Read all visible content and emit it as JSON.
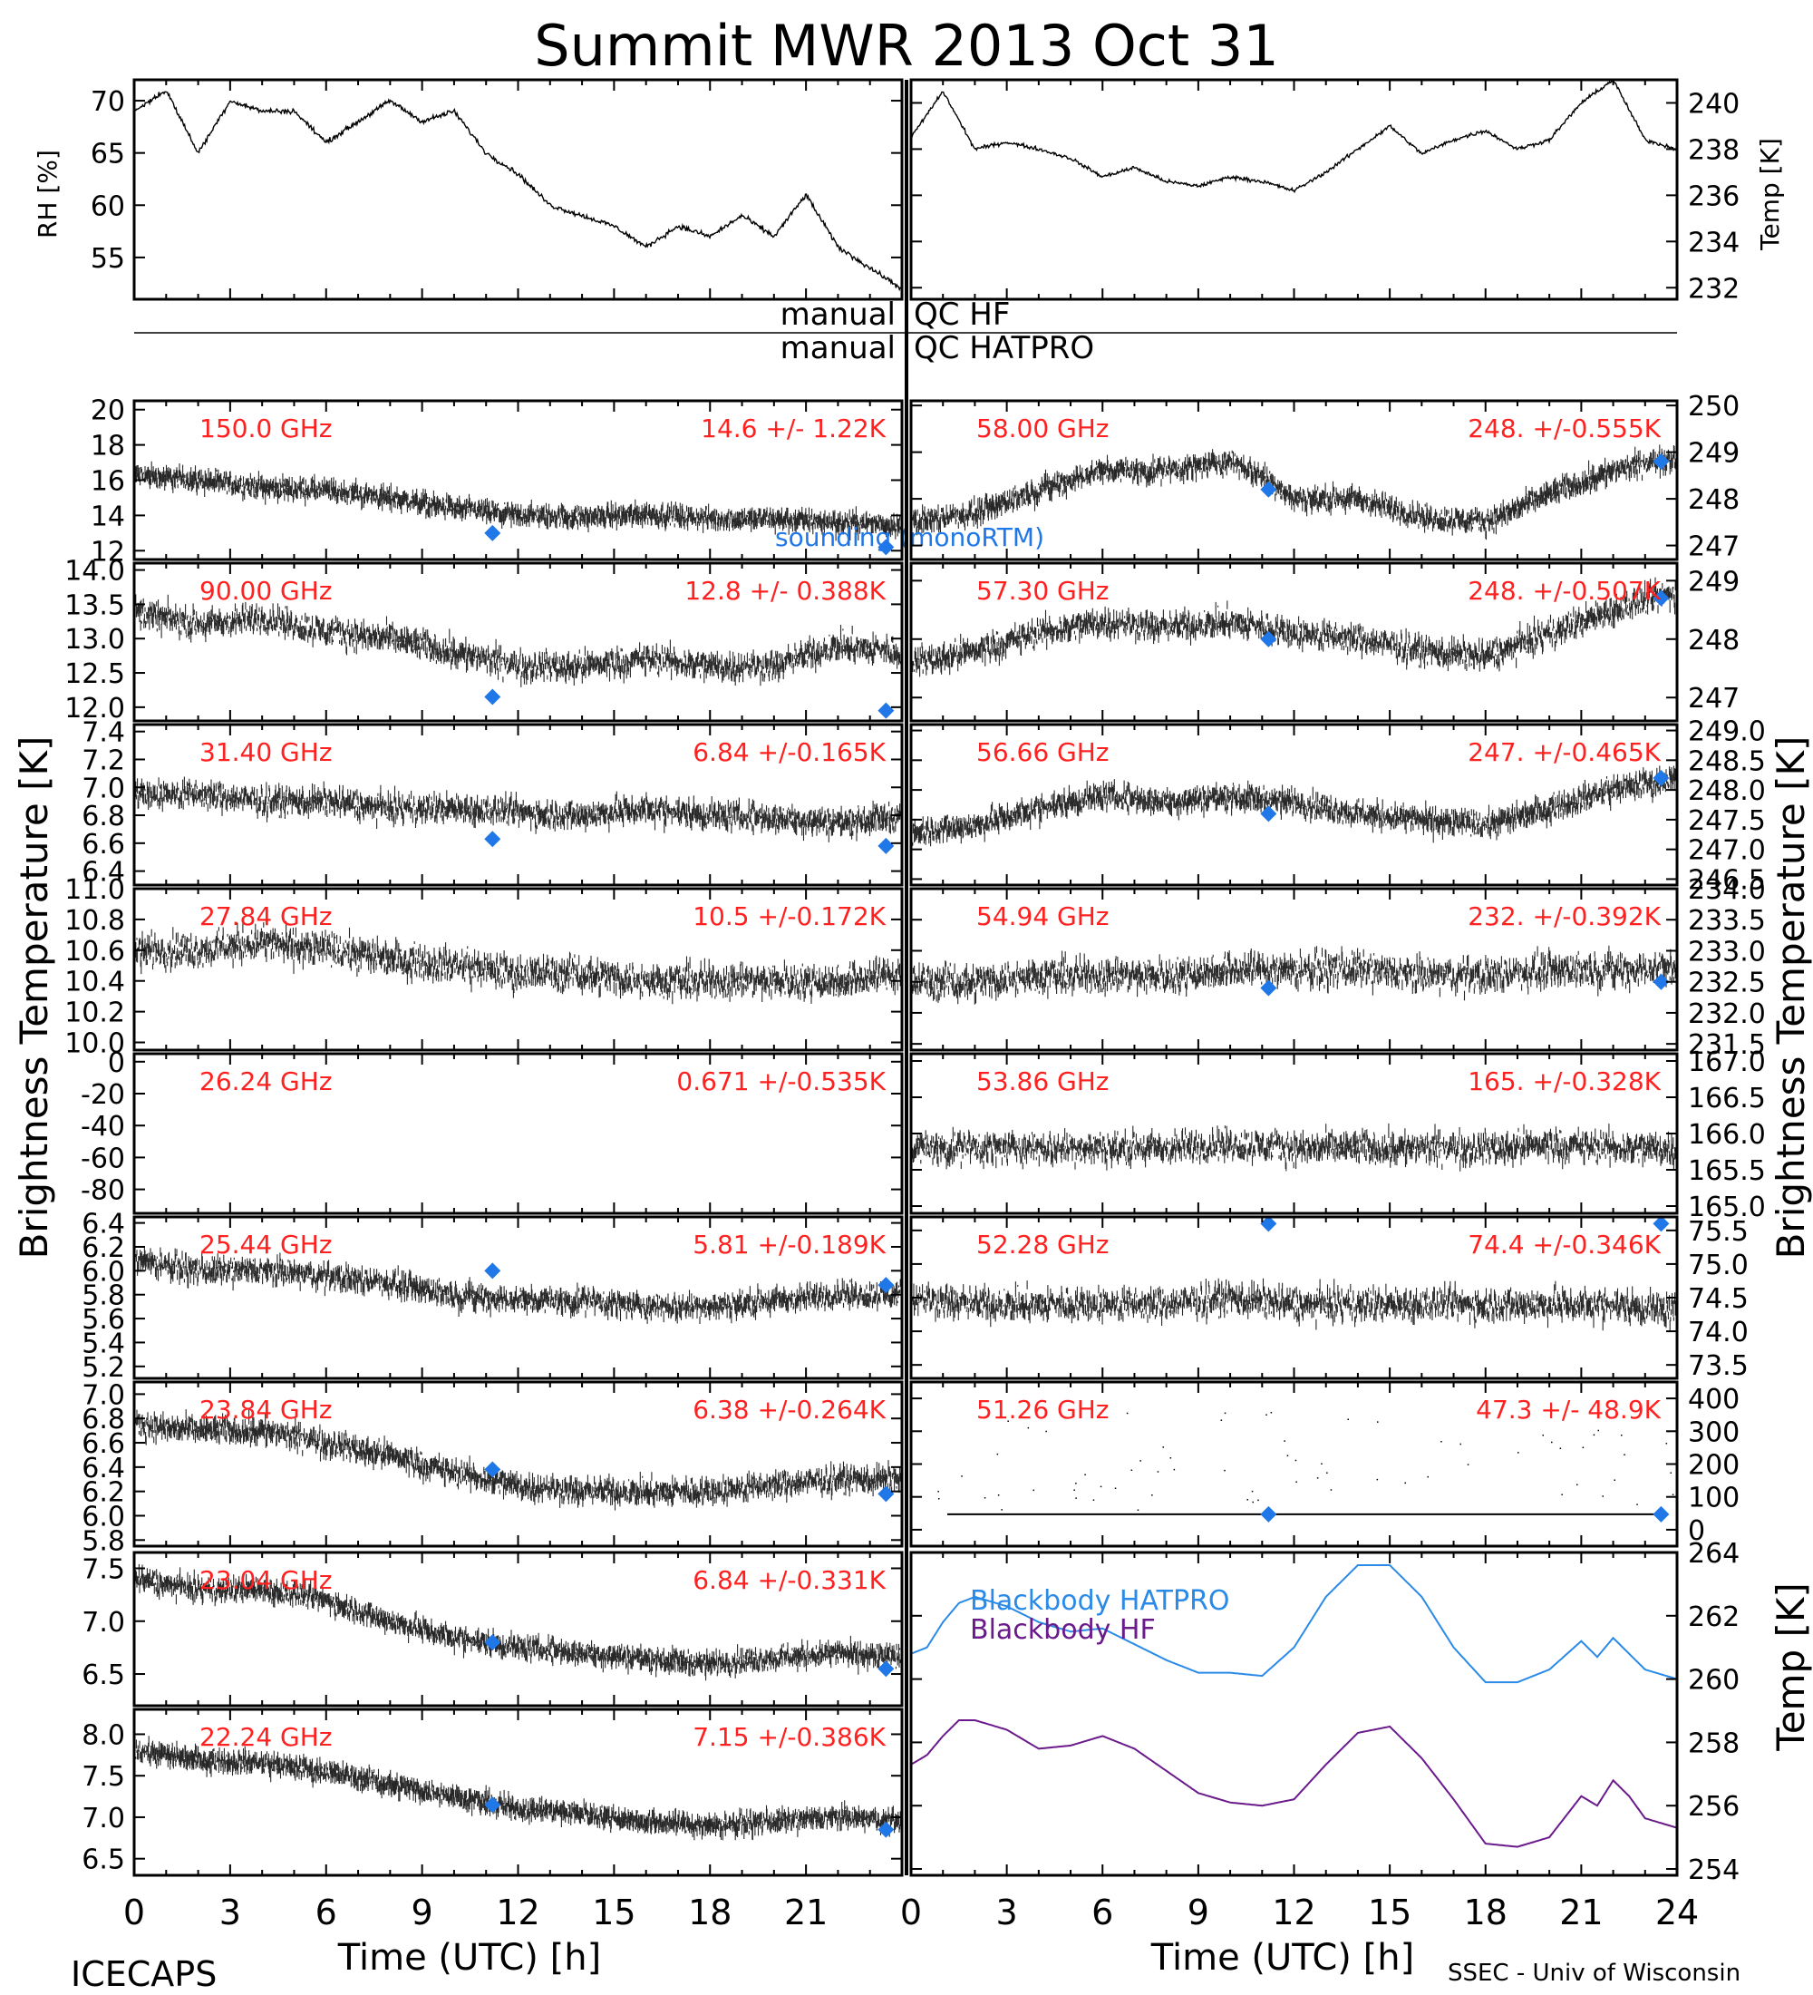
{
  "title": "Summit MWR 2013 Oct 31",
  "footer": {
    "left": "ICECAPS",
    "right": "SSEC - Univ of Wisconsin",
    "xlabel": "Time (UTC) [h]"
  },
  "axis_labels": {
    "left": "Brightness Temperature [K]",
    "right": "Brightness Temperature [K]",
    "rh": "RH [%]",
    "temp": "Temp [K]",
    "bb_temp": "Temp [K]"
  },
  "qc": {
    "manual_1": "manual",
    "qc_hf": "QC HF",
    "manual_2": "manual",
    "qc_hatpro": "QC HATPRO"
  },
  "colors": {
    "channel_label": "#ff2020",
    "sounding": "#1f77e8",
    "bb_hatpro": "#2a8ae8",
    "bb_hf": "#6a1a8a",
    "trace": "#000000"
  },
  "sounding_label": "sounding (monoRTM)",
  "chart_data": [
    {
      "id": "met-rh",
      "type": "line",
      "ylabel": "RH [%]",
      "xlim": [
        0,
        24
      ],
      "ylim": [
        51,
        72
      ],
      "yticks": [
        "55",
        "60",
        "65",
        "70"
      ],
      "x": [
        0,
        1,
        2,
        3,
        4,
        5,
        6,
        7,
        8,
        9,
        10,
        11,
        12,
        13,
        14,
        15,
        16,
        17,
        18,
        19,
        20,
        21,
        22,
        23,
        24
      ],
      "values": [
        69,
        71,
        65,
        70,
        69,
        69,
        66,
        68,
        70,
        68,
        69,
        65,
        63,
        60,
        59,
        58,
        56,
        58,
        57,
        59,
        57,
        61,
        56,
        54,
        52
      ]
    },
    {
      "id": "met-temp",
      "type": "line",
      "ylabel": "Temp [K]",
      "xlim": [
        0,
        24
      ],
      "ylim": [
        231.5,
        241
      ],
      "yticks": [
        "232",
        "234",
        "236",
        "238",
        "240"
      ],
      "x": [
        0,
        1,
        2,
        3,
        4,
        5,
        6,
        7,
        8,
        9,
        10,
        11,
        12,
        13,
        14,
        15,
        16,
        17,
        18,
        19,
        20,
        21,
        22,
        23,
        24
      ],
      "values": [
        238.5,
        240.5,
        238,
        238.3,
        238,
        237.6,
        236.8,
        237.2,
        236.6,
        236.4,
        236.8,
        236.6,
        236.2,
        237,
        238,
        239,
        237.8,
        238.4,
        238.8,
        238,
        238.4,
        240,
        241,
        238.4,
        238
      ]
    },
    {
      "id": "ch-150",
      "type": "scatter",
      "channel": "150.0 GHz",
      "stats": "14.6 +/- 1.22K",
      "side": "left",
      "xlim": [
        0,
        24
      ],
      "ylim": [
        11.5,
        20.5
      ],
      "yticks": [
        "12",
        "14",
        "16",
        "18",
        "20"
      ],
      "x": [
        0,
        2,
        4,
        6,
        8,
        10,
        12,
        14,
        16,
        18,
        20,
        22,
        24
      ],
      "values": [
        16.3,
        16,
        15.6,
        15.4,
        15,
        14.4,
        14,
        13.9,
        14.1,
        13.8,
        13.8,
        13.6,
        13.5
      ],
      "spread": 0.8,
      "sounding": [
        {
          "x": 11.2,
          "y": 13
        },
        {
          "x": 23.5,
          "y": 12.2
        }
      ]
    },
    {
      "id": "ch-58",
      "type": "scatter",
      "channel": "58.00 GHz",
      "stats": "248. +/-0.555K",
      "side": "right",
      "xlim": [
        0,
        24
      ],
      "ylim": [
        246.7,
        250.1
      ],
      "yticks": [
        "247",
        "248",
        "249",
        "250"
      ],
      "x": [
        0,
        2,
        4,
        6,
        8,
        10,
        11,
        12,
        14,
        16,
        18,
        20,
        22,
        24
      ],
      "values": [
        247.5,
        247.7,
        248.2,
        248.6,
        248.6,
        248.8,
        248.5,
        248,
        248,
        247.6,
        247.5,
        248.1,
        248.6,
        248.9
      ],
      "spread": 0.35,
      "sounding": [
        {
          "x": 11.2,
          "y": 248.2
        },
        {
          "x": 23.5,
          "y": 248.8
        }
      ]
    },
    {
      "id": "ch-90",
      "type": "scatter",
      "channel": "90.00 GHz",
      "stats": "12.8 +/- 0.388K",
      "side": "left",
      "xlim": [
        0,
        24
      ],
      "ylim": [
        11.8,
        14.1
      ],
      "yticks": [
        "12.0",
        "12.5",
        "13.0",
        "13.5",
        "14.0"
      ],
      "x": [
        0,
        2,
        4,
        6,
        8,
        10,
        12,
        14,
        16,
        18,
        20,
        22,
        24
      ],
      "values": [
        13.4,
        13.2,
        13.3,
        13.1,
        13,
        12.8,
        12.6,
        12.6,
        12.7,
        12.6,
        12.6,
        12.9,
        12.8
      ],
      "spread": 0.3,
      "sounding": [
        {
          "x": 11.2,
          "y": 12.15
        },
        {
          "x": 23.5,
          "y": 11.95
        }
      ]
    },
    {
      "id": "ch-57.30",
      "type": "scatter",
      "channel": "57.30 GHz",
      "stats": "248. +/-0.507K",
      "side": "right",
      "xlim": [
        0,
        24
      ],
      "ylim": [
        246.6,
        249.3
      ],
      "yticks": [
        "247",
        "248",
        "249"
      ],
      "x": [
        0,
        2,
        4,
        6,
        8,
        10,
        12,
        14,
        16,
        18,
        20,
        22,
        24
      ],
      "values": [
        247.6,
        247.8,
        248.1,
        248.3,
        248.2,
        248.3,
        248.1,
        248,
        247.8,
        247.7,
        248.1,
        248.5,
        248.8
      ],
      "spread": 0.35,
      "sounding": [
        {
          "x": 11.2,
          "y": 248
        },
        {
          "x": 23.5,
          "y": 248.7
        }
      ]
    },
    {
      "id": "ch-31.40",
      "type": "scatter",
      "channel": "31.40 GHz",
      "stats": "6.84 +/-0.165K",
      "side": "left",
      "xlim": [
        0,
        24
      ],
      "ylim": [
        6.3,
        7.45
      ],
      "yticks": [
        "6.4",
        "6.6",
        "6.8",
        "7.0",
        "7.2",
        "7.4"
      ],
      "x": [
        0,
        2,
        4,
        6,
        8,
        10,
        12,
        14,
        16,
        18,
        20,
        22,
        24
      ],
      "values": [
        6.95,
        6.95,
        6.9,
        6.9,
        6.85,
        6.85,
        6.82,
        6.8,
        6.85,
        6.8,
        6.78,
        6.75,
        6.8
      ],
      "spread": 0.14,
      "sounding": [
        {
          "x": 11.2,
          "y": 6.63
        },
        {
          "x": 23.5,
          "y": 6.58
        }
      ]
    },
    {
      "id": "ch-56.66",
      "type": "scatter",
      "channel": "56.66 GHz",
      "stats": "247. +/-0.465K",
      "side": "right",
      "xlim": [
        0,
        24
      ],
      "ylim": [
        246.4,
        249.1
      ],
      "yticks": [
        "246.5",
        "247.0",
        "247.5",
        "248.0",
        "248.5",
        "249.0"
      ],
      "x": [
        0,
        2,
        4,
        6,
        8,
        10,
        12,
        14,
        16,
        18,
        20,
        22,
        24
      ],
      "values": [
        247.3,
        247.4,
        247.7,
        247.9,
        247.8,
        247.9,
        247.8,
        247.6,
        247.5,
        247.4,
        247.7,
        248,
        248.2
      ],
      "spread": 0.3,
      "sounding": [
        {
          "x": 11.2,
          "y": 247.6
        },
        {
          "x": 23.5,
          "y": 248.2
        }
      ]
    },
    {
      "id": "ch-27.84",
      "type": "scatter",
      "channel": "27.84 GHz",
      "stats": "10.5 +/-0.172K",
      "side": "left",
      "xlim": [
        0,
        24
      ],
      "ylim": [
        9.95,
        11.0
      ],
      "yticks": [
        "10.0",
        "10.2",
        "10.4",
        "10.6",
        "10.8",
        "11.0"
      ],
      "x": [
        0,
        2,
        4,
        6,
        8,
        10,
        12,
        14,
        16,
        18,
        20,
        22,
        24
      ],
      "values": [
        10.6,
        10.6,
        10.65,
        10.6,
        10.55,
        10.5,
        10.45,
        10.45,
        10.4,
        10.4,
        10.4,
        10.4,
        10.45
      ],
      "spread": 0.16,
      "sounding": []
    },
    {
      "id": "ch-54.94",
      "type": "scatter",
      "channel": "54.94 GHz",
      "stats": "232. +/-0.392K",
      "side": "right",
      "xlim": [
        0,
        24
      ],
      "ylim": [
        231.4,
        234.0
      ],
      "yticks": [
        "231.5",
        "232.0",
        "232.5",
        "233.0",
        "233.5",
        "234.0"
      ],
      "x": [
        0,
        2,
        4,
        6,
        8,
        10,
        12,
        14,
        16,
        18,
        20,
        22,
        24
      ],
      "values": [
        232.5,
        232.5,
        232.6,
        232.6,
        232.6,
        232.7,
        232.7,
        232.7,
        232.6,
        232.6,
        232.7,
        232.7,
        232.7
      ],
      "spread": 0.4,
      "sounding": [
        {
          "x": 11.2,
          "y": 232.4
        },
        {
          "x": 23.5,
          "y": 232.5
        }
      ]
    },
    {
      "id": "ch-26.24",
      "type": "scatter",
      "channel": "26.24 GHz",
      "stats": "0.671 +/-0.535K",
      "side": "left",
      "xlim": [
        0,
        24
      ],
      "ylim": [
        -95,
        5
      ],
      "yticks": [
        "-80",
        "-60",
        "-40",
        "-20",
        "0"
      ],
      "x": [],
      "values": [],
      "spread": 0,
      "sounding": []
    },
    {
      "id": "ch-53.86",
      "type": "scatter",
      "channel": "53.86 GHz",
      "stats": "165. +/-0.328K",
      "side": "right",
      "xlim": [
        0,
        24
      ],
      "ylim": [
        164.9,
        167.1
      ],
      "yticks": [
        "165.0",
        "165.5",
        "166.0",
        "166.5",
        "167.0"
      ],
      "x": [
        0,
        2,
        4,
        6,
        8,
        10,
        12,
        14,
        16,
        18,
        20,
        22,
        24
      ],
      "values": [
        165.8,
        165.8,
        165.8,
        165.8,
        165.8,
        165.85,
        165.8,
        165.8,
        165.8,
        165.8,
        165.85,
        165.8,
        165.8
      ],
      "spread": 0.32,
      "sounding": []
    },
    {
      "id": "ch-25.44",
      "type": "scatter",
      "channel": "25.44 GHz",
      "stats": "5.81 +/-0.189K",
      "side": "left",
      "xlim": [
        0,
        24
      ],
      "ylim": [
        5.1,
        6.45
      ],
      "yticks": [
        "5.2",
        "5.4",
        "5.6",
        "5.8",
        "6.0",
        "6.2",
        "6.4"
      ],
      "x": [
        0,
        2,
        4,
        6,
        8,
        10,
        12,
        14,
        16,
        18,
        20,
        22,
        24
      ],
      "values": [
        6.1,
        6.0,
        6.0,
        5.95,
        5.9,
        5.8,
        5.75,
        5.75,
        5.7,
        5.7,
        5.75,
        5.8,
        5.8
      ],
      "spread": 0.15,
      "sounding": [
        {
          "x": 11.2,
          "y": 6.0
        },
        {
          "x": 23.5,
          "y": 5.88
        }
      ]
    },
    {
      "id": "ch-52.28",
      "type": "scatter",
      "channel": "52.28 GHz",
      "stats": "74.4 +/-0.346K",
      "side": "right",
      "xlim": [
        0,
        24
      ],
      "ylim": [
        73.3,
        75.7
      ],
      "yticks": [
        "73.5",
        "74.0",
        "74.5",
        "75.0",
        "75.5"
      ],
      "x": [
        0,
        2,
        4,
        6,
        8,
        10,
        12,
        14,
        16,
        18,
        20,
        22,
        24
      ],
      "values": [
        74.5,
        74.4,
        74.4,
        74.4,
        74.4,
        74.5,
        74.4,
        74.4,
        74.4,
        74.4,
        74.4,
        74.4,
        74.3
      ],
      "spread": 0.35,
      "sounding": [
        {
          "x": 11.2,
          "y": 75.6
        },
        {
          "x": 23.5,
          "y": 75.6
        }
      ]
    },
    {
      "id": "ch-23.84",
      "type": "scatter",
      "channel": "23.84 GHz",
      "stats": "6.38 +/-0.264K",
      "side": "left",
      "xlim": [
        0,
        24
      ],
      "ylim": [
        5.75,
        7.1
      ],
      "yticks": [
        "5.8",
        "6.0",
        "6.2",
        "6.4",
        "6.6",
        "6.8",
        "7.0"
      ],
      "x": [
        0,
        2,
        4,
        6,
        8,
        10,
        12,
        14,
        16,
        18,
        20,
        22,
        24
      ],
      "values": [
        6.75,
        6.7,
        6.7,
        6.6,
        6.5,
        6.35,
        6.25,
        6.2,
        6.2,
        6.2,
        6.25,
        6.3,
        6.3
      ],
      "spread": 0.15,
      "sounding": [
        {
          "x": 11.2,
          "y": 6.38
        },
        {
          "x": 23.5,
          "y": 6.18
        }
      ]
    },
    {
      "id": "ch-51.26",
      "type": "scatter",
      "channel": "51.26 GHz",
      "stats": "47.3 +/- 48.9K",
      "side": "right",
      "xlim": [
        0,
        24
      ],
      "ylim": [
        -50,
        450
      ],
      "yticks": [
        "0",
        "100",
        "200",
        "300",
        "400"
      ],
      "x": [
        0,
        4,
        8,
        12,
        16,
        20,
        24
      ],
      "values": [
        47,
        47,
        47,
        47,
        47,
        47,
        47
      ],
      "spread": 6,
      "sounding": [
        {
          "x": 11.2,
          "y": 47
        },
        {
          "x": 23.5,
          "y": 47
        }
      ]
    },
    {
      "id": "ch-23.04",
      "type": "scatter",
      "channel": "23.04 GHz",
      "stats": "6.84 +/-0.331K",
      "side": "left",
      "xlim": [
        0,
        24
      ],
      "ylim": [
        6.2,
        7.65
      ],
      "yticks": [
        "6.5",
        "7.0",
        "7.5"
      ],
      "x": [
        0,
        2,
        4,
        6,
        8,
        10,
        12,
        14,
        16,
        18,
        20,
        22,
        24
      ],
      "values": [
        7.4,
        7.3,
        7.3,
        7.2,
        7.0,
        6.85,
        6.75,
        6.7,
        6.65,
        6.6,
        6.65,
        6.7,
        6.65
      ],
      "spread": 0.15,
      "sounding": [
        {
          "x": 11.2,
          "y": 6.8
        },
        {
          "x": 23.5,
          "y": 6.55
        }
      ]
    },
    {
      "id": "ch-22.24",
      "type": "scatter",
      "channel": "22.24 GHz",
      "stats": "7.15 +/-0.386K",
      "side": "left",
      "xlim": [
        0,
        24
      ],
      "ylim": [
        6.3,
        8.3
      ],
      "yticks": [
        "6.5",
        "7.0",
        "7.5",
        "8.0"
      ],
      "x": [
        0,
        2,
        4,
        6,
        8,
        10,
        12,
        14,
        16,
        18,
        20,
        22,
        24
      ],
      "values": [
        7.8,
        7.7,
        7.65,
        7.55,
        7.4,
        7.25,
        7.1,
        7.05,
        6.95,
        6.9,
        6.95,
        7.0,
        6.95
      ],
      "spread": 0.17,
      "sounding": [
        {
          "x": 11.2,
          "y": 7.15
        },
        {
          "x": 23.5,
          "y": 6.85
        }
      ]
    },
    {
      "id": "blackbody",
      "type": "line",
      "ylabel": "Temp [K]",
      "xlim": [
        0,
        24
      ],
      "ylim": [
        253.8,
        264
      ],
      "yticks": [
        "254",
        "256",
        "258",
        "260",
        "262",
        "264"
      ],
      "x": [
        0,
        0.5,
        1,
        1.5,
        2,
        3,
        4,
        5,
        6,
        7,
        8,
        9,
        10,
        11,
        12,
        13,
        14,
        15,
        16,
        17,
        18,
        19,
        20,
        21,
        21.5,
        22,
        22.5,
        23,
        24
      ],
      "series": [
        {
          "name": "Blackbody HATPRO",
          "values": [
            260.8,
            261,
            261.8,
            262.4,
            262.6,
            262.3,
            261.8,
            261.5,
            261.6,
            261.1,
            260.6,
            260.2,
            260.2,
            260.1,
            261,
            262.6,
            263.6,
            263.6,
            262.6,
            261,
            259.9,
            259.9,
            260.3,
            261.2,
            260.7,
            261.3,
            260.8,
            260.3,
            260
          ]
        },
        {
          "name": "Blackbody HF",
          "values": [
            257.3,
            257.6,
            258.2,
            258.7,
            258.7,
            258.4,
            257.8,
            257.9,
            258.2,
            257.8,
            257.1,
            256.4,
            256.1,
            256,
            256.2,
            257.3,
            258.3,
            258.5,
            257.5,
            256.2,
            254.8,
            254.7,
            255,
            256.3,
            256,
            256.8,
            256.3,
            255.6,
            255.3
          ]
        }
      ]
    }
  ],
  "xticks": [
    "0",
    "3",
    "6",
    "9",
    "12",
    "15",
    "18",
    "21",
    "24"
  ]
}
